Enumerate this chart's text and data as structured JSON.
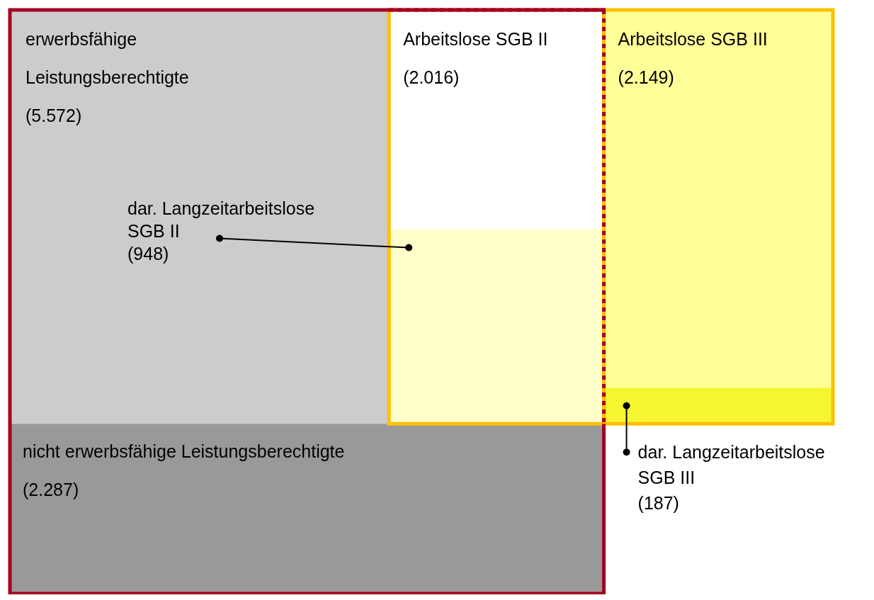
{
  "chart_data": {
    "type": "other",
    "categories": [
      "erwerbsfähige Leistungsberechtigte",
      "Arbeitslose SGB II",
      "dar. Langzeitarbeitslose SGB II",
      "nicht erwerbsfähige Leistungsberechtigte",
      "Arbeitslose SGB III",
      "dar. Langzeitarbeitslose SGB III"
    ],
    "values": [
      5572,
      2016,
      948,
      2287,
      2149,
      187
    ],
    "value_labels": [
      "(5.572)",
      "(2.016)",
      "(948)",
      "(2.287)",
      "(2.149)",
      "(187)"
    ],
    "colors": [
      "#cccccc",
      "#ffffff",
      "#ffffcc",
      "#999999",
      "#ffff99",
      "#f5f532"
    ]
  }
}
